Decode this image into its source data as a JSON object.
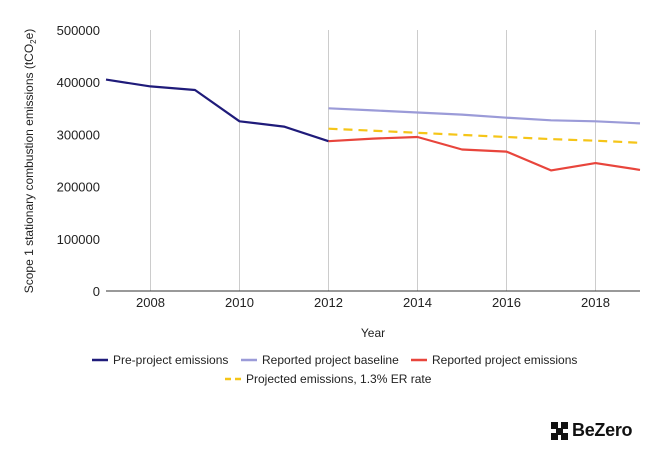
{
  "chart_data": {
    "type": "line",
    "title": "",
    "xlabel": "Year",
    "ylabel": "Scope 1 stationary combustion emissions (tCO",
    "ylabel_sub": "2",
    "ylabel_end": "e)",
    "xlim": [
      2007,
      2019
    ],
    "ylim": [
      0,
      500000
    ],
    "x_ticks": [
      2008,
      2010,
      2012,
      2014,
      2016,
      2018
    ],
    "y_ticks": [
      0,
      100000,
      200000,
      300000,
      400000,
      500000
    ],
    "grid": "vertical",
    "legend_position": "bottom",
    "series": [
      {
        "name": "Pre-project emissions",
        "color": "#1f1b7a",
        "style": "solid",
        "x": [
          2007,
          2008,
          2009,
          2010,
          2011,
          2012
        ],
        "y": [
          405000,
          392000,
          385000,
          325000,
          315000,
          287000
        ]
      },
      {
        "name": "Reported project baseline",
        "color": "#9b9bd8",
        "style": "solid",
        "x": [
          2012,
          2013,
          2014,
          2015,
          2016,
          2017,
          2018,
          2019
        ],
        "y": [
          350000,
          346000,
          342000,
          338000,
          332000,
          327000,
          325000,
          321000
        ]
      },
      {
        "name": "Reported project emissions",
        "color": "#e8453c",
        "style": "solid",
        "x": [
          2012,
          2013,
          2014,
          2015,
          2016,
          2017,
          2018,
          2019
        ],
        "y": [
          287000,
          292000,
          295000,
          271000,
          267000,
          231000,
          245000,
          232000
        ]
      },
      {
        "name": "Projected emissions, 1.3% ER rate",
        "color": "#f5c518",
        "style": "dashed",
        "x": [
          2012,
          2013,
          2014,
          2015,
          2016,
          2017,
          2018,
          2019
        ],
        "y": [
          311000,
          307000,
          303000,
          299000,
          295000,
          291000,
          288000,
          284000
        ]
      }
    ]
  },
  "logo": {
    "text": "BeZero"
  }
}
